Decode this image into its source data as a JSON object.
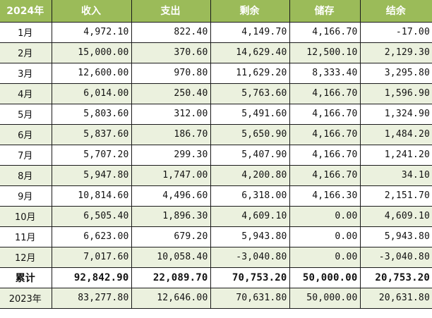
{
  "header": {
    "col0": "2024年",
    "col1": "收入",
    "col2": "支出",
    "col3": "剩余",
    "col4": "储存",
    "col5": "结余"
  },
  "colors": {
    "header_bg": "#9bbb59",
    "header_text": "#ffffff",
    "alt_row_bg": "#ebf1de",
    "border": "#1a1a1a"
  },
  "rows": [
    {
      "label": "1月",
      "income": "4,972.10",
      "expense": "822.40",
      "remaining": "4,149.70",
      "savings": "4,166.70",
      "balance": "-17.00"
    },
    {
      "label": "2月",
      "income": "15,000.00",
      "expense": "370.60",
      "remaining": "14,629.40",
      "savings": "12,500.10",
      "balance": "2,129.30"
    },
    {
      "label": "3月",
      "income": "12,600.00",
      "expense": "970.80",
      "remaining": "11,629.20",
      "savings": "8,333.40",
      "balance": "3,295.80"
    },
    {
      "label": "4月",
      "income": "6,014.00",
      "expense": "250.40",
      "remaining": "5,763.60",
      "savings": "4,166.70",
      "balance": "1,596.90"
    },
    {
      "label": "5月",
      "income": "5,803.60",
      "expense": "312.00",
      "remaining": "5,491.60",
      "savings": "4,166.70",
      "balance": "1,324.90"
    },
    {
      "label": "6月",
      "income": "5,837.60",
      "expense": "186.70",
      "remaining": "5,650.90",
      "savings": "4,166.70",
      "balance": "1,484.20"
    },
    {
      "label": "7月",
      "income": "5,707.20",
      "expense": "299.30",
      "remaining": "5,407.90",
      "savings": "4,166.70",
      "balance": "1,241.20"
    },
    {
      "label": "8月",
      "income": "5,947.80",
      "expense": "1,747.00",
      "remaining": "4,200.80",
      "savings": "4,166.70",
      "balance": "34.10"
    },
    {
      "label": "9月",
      "income": "10,814.60",
      "expense": "4,496.60",
      "remaining": "6,318.00",
      "savings": "4,166.30",
      "balance": "2,151.70"
    },
    {
      "label": "10月",
      "income": "6,505.40",
      "expense": "1,896.30",
      "remaining": "4,609.10",
      "savings": "0.00",
      "balance": "4,609.10"
    },
    {
      "label": "11月",
      "income": "6,623.00",
      "expense": "679.20",
      "remaining": "5,943.80",
      "savings": "0.00",
      "balance": "5,943.80"
    },
    {
      "label": "12月",
      "income": "7,017.60",
      "expense": "10,058.40",
      "remaining": "-3,040.80",
      "savings": "0.00",
      "balance": "-3,040.80"
    }
  ],
  "total": {
    "label": "累计",
    "income": "92,842.90",
    "expense": "22,089.70",
    "remaining": "70,753.20",
    "savings": "50,000.00",
    "balance": "20,753.20"
  },
  "previous_year": {
    "label": "2023年",
    "income": "83,277.80",
    "expense": "12,646.00",
    "remaining": "70,631.80",
    "savings": "50,000.00",
    "balance": "20,631.80"
  }
}
